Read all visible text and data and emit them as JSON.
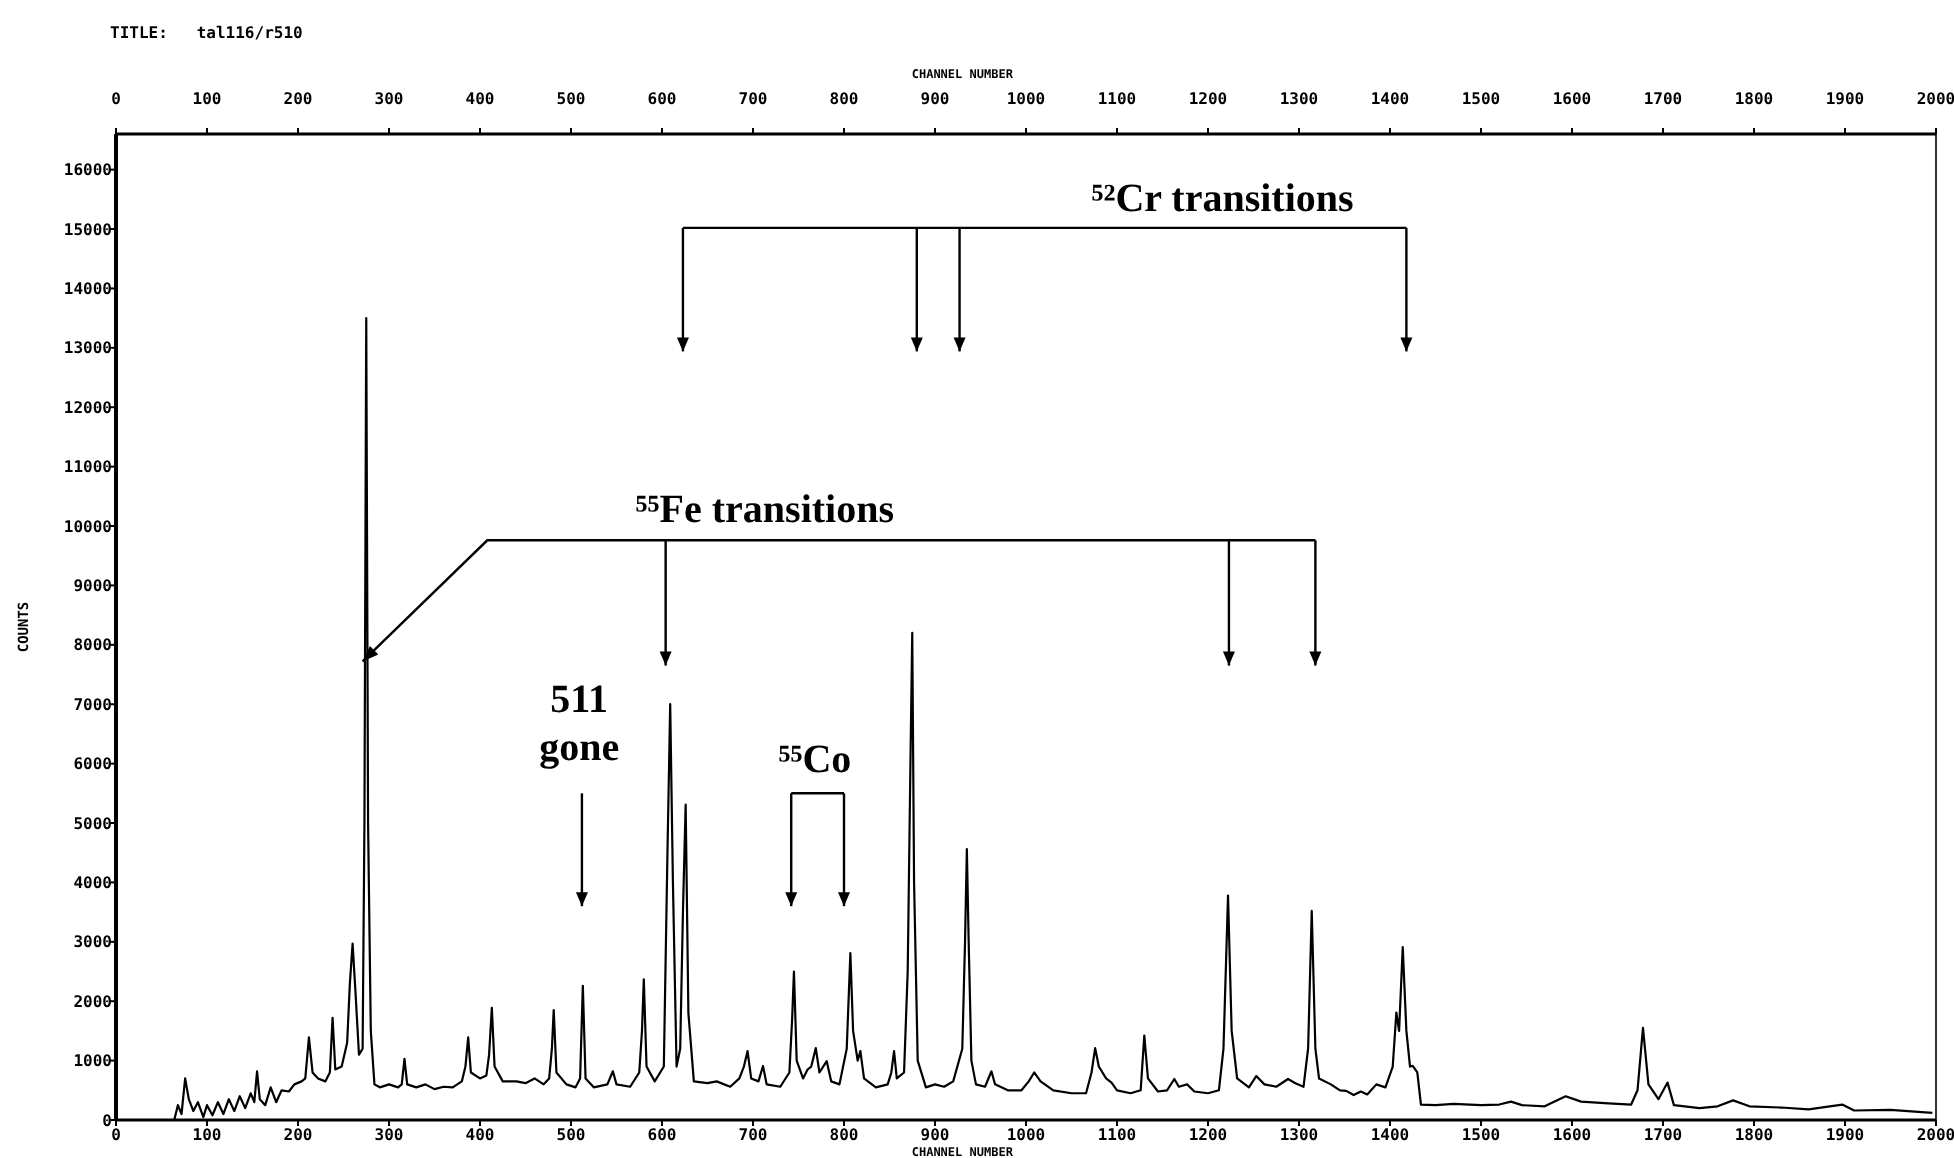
{
  "chart_data": {
    "type": "line",
    "title": "TITLE:   tal116/r510",
    "xlabel": "CHANNEL NUMBER",
    "x2label": "CHANNEL NUMBER",
    "ylabel": "COUNTS",
    "xlim": [
      0,
      2000
    ],
    "xticks": [
      0,
      100,
      200,
      300,
      400,
      500,
      600,
      700,
      800,
      900,
      1000,
      1100,
      1200,
      1300,
      1400,
      1500,
      1600,
      1700,
      1800,
      1900,
      2000
    ],
    "x2lim": [
      0,
      2000
    ],
    "x2ticks": [
      0,
      100,
      200,
      300,
      400,
      500,
      600,
      700,
      800,
      900,
      1000,
      1100,
      1200,
      1300,
      1400,
      1500,
      1600,
      1700,
      1800,
      1900,
      2000
    ],
    "ylim": [
      0,
      16600
    ],
    "yticks": [
      0,
      1000,
      2000,
      3000,
      4000,
      5000,
      6000,
      7000,
      8000,
      9000,
      10000,
      11000,
      12000,
      13000,
      14000,
      15000,
      16000
    ],
    "line_style": "solid",
    "annotations": [
      "⁵²Cr transitions",
      "⁵⁵Fe transitions",
      "511\ngone",
      "⁵⁵Co"
    ],
    "series": [
      {
        "color": "#000000",
        "x": [
          64,
          68,
          72,
          76,
          80,
          85,
          90,
          96,
          100,
          106,
          112,
          118,
          124,
          130,
          136,
          142,
          148,
          152,
          155,
          158,
          164,
          170,
          176,
          182,
          190,
          196,
          204,
          208,
          212,
          216,
          222,
          230,
          235,
          238,
          241,
          248,
          254,
          257,
          260,
          263,
          267,
          271,
          273,
          275,
          277,
          280,
          284,
          290,
          300,
          310,
          314,
          317,
          320,
          330,
          340,
          350,
          360,
          370,
          380,
          384,
          387,
          390,
          400,
          407,
          410,
          413,
          416,
          425,
          440,
          450,
          460,
          470,
          476,
          479,
          481,
          484,
          495,
          505,
          510,
          513,
          516,
          525,
          540,
          546,
          550,
          565,
          575,
          578,
          580,
          583,
          592,
          602,
          606,
          609,
          612,
          616,
          620,
          623,
          626,
          629,
          635,
          650,
          660,
          675,
          685,
          690,
          694,
          698,
          706,
          711,
          715,
          730,
          740,
          743,
          745,
          748,
          755,
          760,
          764,
          769,
          773,
          781,
          786,
          795,
          803,
          807,
          810,
          815,
          818,
          822,
          835,
          848,
          852,
          855,
          858,
          866,
          870,
          873,
          875,
          877,
          881,
          890,
          900,
          910,
          920,
          930,
          933,
          935,
          937,
          940,
          945,
          955,
          962,
          966,
          980,
          995,
          1003,
          1009,
          1016,
          1030,
          1050,
          1066,
          1072,
          1076,
          1080,
          1088,
          1094,
          1100,
          1115,
          1126,
          1130,
          1134,
          1145,
          1155,
          1163,
          1168,
          1177,
          1185,
          1200,
          1212,
          1217,
          1222,
          1226,
          1232,
          1245,
          1253,
          1262,
          1275,
          1288,
          1296,
          1305,
          1310,
          1314,
          1318,
          1322,
          1335,
          1345,
          1352,
          1360,
          1368,
          1375,
          1385,
          1395,
          1403,
          1407,
          1410,
          1414,
          1418,
          1422,
          1425,
          1430,
          1434,
          1450,
          1470,
          1500,
          1520,
          1533,
          1545,
          1570,
          1593,
          1610,
          1640,
          1665,
          1672,
          1678,
          1684,
          1695,
          1705,
          1712,
          1740,
          1760,
          1777,
          1795,
          1830,
          1860,
          1897,
          1910,
          1950,
          1996
        ],
        "values": [
          0,
          250,
          100,
          700,
          350,
          150,
          300,
          50,
          250,
          80,
          300,
          100,
          350,
          150,
          400,
          200,
          450,
          300,
          820,
          350,
          250,
          550,
          300,
          500,
          480,
          600,
          650,
          700,
          1390,
          800,
          700,
          650,
          800,
          1720,
          850,
          900,
          1300,
          2300,
          2970,
          2200,
          1100,
          1200,
          5000,
          13500,
          5000,
          1500,
          600,
          550,
          600,
          550,
          600,
          1030,
          600,
          550,
          600,
          520,
          560,
          550,
          650,
          900,
          1390,
          800,
          700,
          750,
          1100,
          1890,
          900,
          650,
          650,
          620,
          700,
          600,
          700,
          1200,
          1850,
          800,
          600,
          550,
          700,
          2260,
          700,
          550,
          600,
          820,
          600,
          560,
          800,
          1500,
          2370,
          900,
          650,
          900,
          4500,
          7000,
          4000,
          900,
          1200,
          3500,
          5310,
          1800,
          650,
          620,
          650,
          560,
          700,
          900,
          1160,
          700,
          650,
          910,
          600,
          560,
          800,
          1700,
          2500,
          1000,
          700,
          850,
          900,
          1210,
          800,
          990,
          650,
          600,
          1200,
          2810,
          1500,
          1000,
          1160,
          700,
          550,
          600,
          800,
          1160,
          700,
          800,
          2500,
          6000,
          8200,
          4000,
          1000,
          550,
          600,
          560,
          650,
          1200,
          3000,
          4560,
          3000,
          1000,
          600,
          560,
          820,
          600,
          500,
          500,
          650,
          800,
          650,
          500,
          450,
          450,
          800,
          1210,
          900,
          700,
          630,
          500,
          450,
          500,
          1420,
          700,
          480,
          500,
          690,
          560,
          600,
          480,
          450,
          500,
          1200,
          3780,
          1500,
          700,
          550,
          740,
          600,
          560,
          690,
          620,
          560,
          1200,
          3520,
          1200,
          700,
          600,
          500,
          490,
          420,
          480,
          430,
          600,
          550,
          900,
          1810,
          1500,
          2910,
          1500,
          900,
          910,
          800,
          260,
          250,
          270,
          250,
          260,
          310,
          250,
          230,
          400,
          310,
          280,
          260,
          500,
          1550,
          600,
          350,
          630,
          250,
          200,
          230,
          330,
          230,
          210,
          180,
          260,
          160,
          170,
          120
        ]
      }
    ]
  }
}
